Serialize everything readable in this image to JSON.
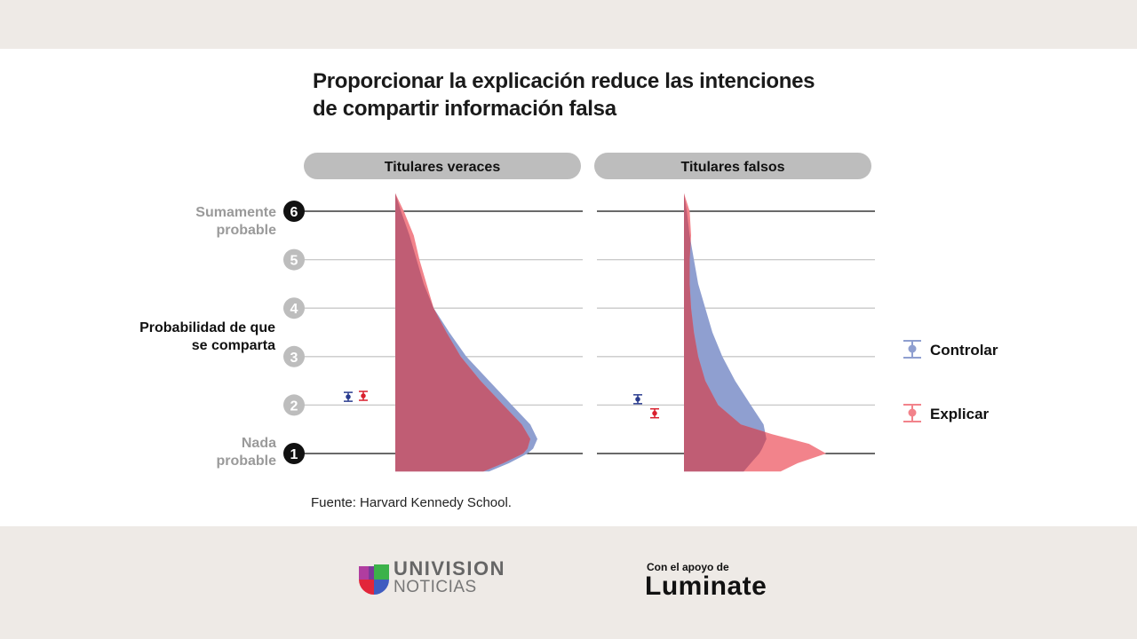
{
  "title_line1": "Proporcionar la explicación reduce las intenciones",
  "title_line2": "de compartir información falsa",
  "source": "Fuente: Harvard Kennedy School.",
  "footer": {
    "brand_line1": "UNIVISION",
    "brand_line2": "NOTICIAS",
    "support_label": "Con el apoyo de",
    "support_brand": "Luminate"
  },
  "colors": {
    "control": "#8f9fd0",
    "explain": "#f2838b",
    "overlap": "#c05d74",
    "control_bar": "#2a3c8f",
    "explain_bar": "#d9202e"
  },
  "chart_data": {
    "type": "violin",
    "ylabel_line1": "Probabilidad de que",
    "ylabel_line2": "se comparta",
    "ylim": [
      0.63,
      6.37
    ],
    "yticks": [
      "1",
      "2",
      "3",
      "4",
      "5",
      "6"
    ],
    "top_label": [
      "Sumamente",
      "probable"
    ],
    "bottom_label": [
      "Nada",
      "probable"
    ],
    "legend": [
      {
        "name": "Controlar",
        "key": "control"
      },
      {
        "name": "Explicar",
        "key": "explain"
      }
    ],
    "legend_position": "right",
    "panels": [
      {
        "title": "Titulares veraces",
        "means": {
          "control": 2.17,
          "explain": 2.19
        },
        "density": {
          "control": [
            [
              6.37,
              0
            ],
            [
              6,
              0.04
            ],
            [
              5.5,
              0.1
            ],
            [
              5,
              0.15
            ],
            [
              4.5,
              0.2
            ],
            [
              4,
              0.27
            ],
            [
              3.5,
              0.38
            ],
            [
              3,
              0.5
            ],
            [
              2.5,
              0.66
            ],
            [
              2,
              0.82
            ],
            [
              1.6,
              0.95
            ],
            [
              1.3,
              1.0
            ],
            [
              1.1,
              0.97
            ],
            [
              1,
              0.93
            ],
            [
              0.8,
              0.8
            ],
            [
              0.63,
              0.66
            ]
          ],
          "explain": [
            [
              6.37,
              0
            ],
            [
              6,
              0.06
            ],
            [
              5.5,
              0.13
            ],
            [
              5,
              0.17
            ],
            [
              4.5,
              0.22
            ],
            [
              4,
              0.27
            ],
            [
              3.5,
              0.36
            ],
            [
              3,
              0.46
            ],
            [
              2.5,
              0.6
            ],
            [
              2,
              0.76
            ],
            [
              1.6,
              0.89
            ],
            [
              1.3,
              0.95
            ],
            [
              1.1,
              0.93
            ],
            [
              1,
              0.9
            ],
            [
              0.8,
              0.76
            ],
            [
              0.63,
              0.62
            ]
          ]
        }
      },
      {
        "title": "Titulares falsos",
        "means": {
          "control": 2.12,
          "explain": 1.83
        },
        "density": {
          "control": [
            [
              6.37,
              0
            ],
            [
              6,
              0.02
            ],
            [
              5.5,
              0.04
            ],
            [
              5,
              0.07
            ],
            [
              4.5,
              0.1
            ],
            [
              4,
              0.15
            ],
            [
              3.5,
              0.2
            ],
            [
              3,
              0.27
            ],
            [
              2.5,
              0.36
            ],
            [
              2,
              0.47
            ],
            [
              1.6,
              0.56
            ],
            [
              1.3,
              0.58
            ],
            [
              1.1,
              0.55
            ],
            [
              1,
              0.53
            ],
            [
              0.8,
              0.47
            ],
            [
              0.63,
              0.42
            ]
          ],
          "explain": [
            [
              6.37,
              0
            ],
            [
              6,
              0.04
            ],
            [
              5.5,
              0.05
            ],
            [
              5,
              0.04
            ],
            [
              4.5,
              0.04
            ],
            [
              4,
              0.05
            ],
            [
              3.5,
              0.07
            ],
            [
              3,
              0.1
            ],
            [
              2.5,
              0.15
            ],
            [
              2,
              0.24
            ],
            [
              1.6,
              0.4
            ],
            [
              1.4,
              0.62
            ],
            [
              1.2,
              0.88
            ],
            [
              1,
              1.0
            ],
            [
              0.8,
              0.8
            ],
            [
              0.63,
              0.68
            ]
          ]
        }
      }
    ]
  }
}
